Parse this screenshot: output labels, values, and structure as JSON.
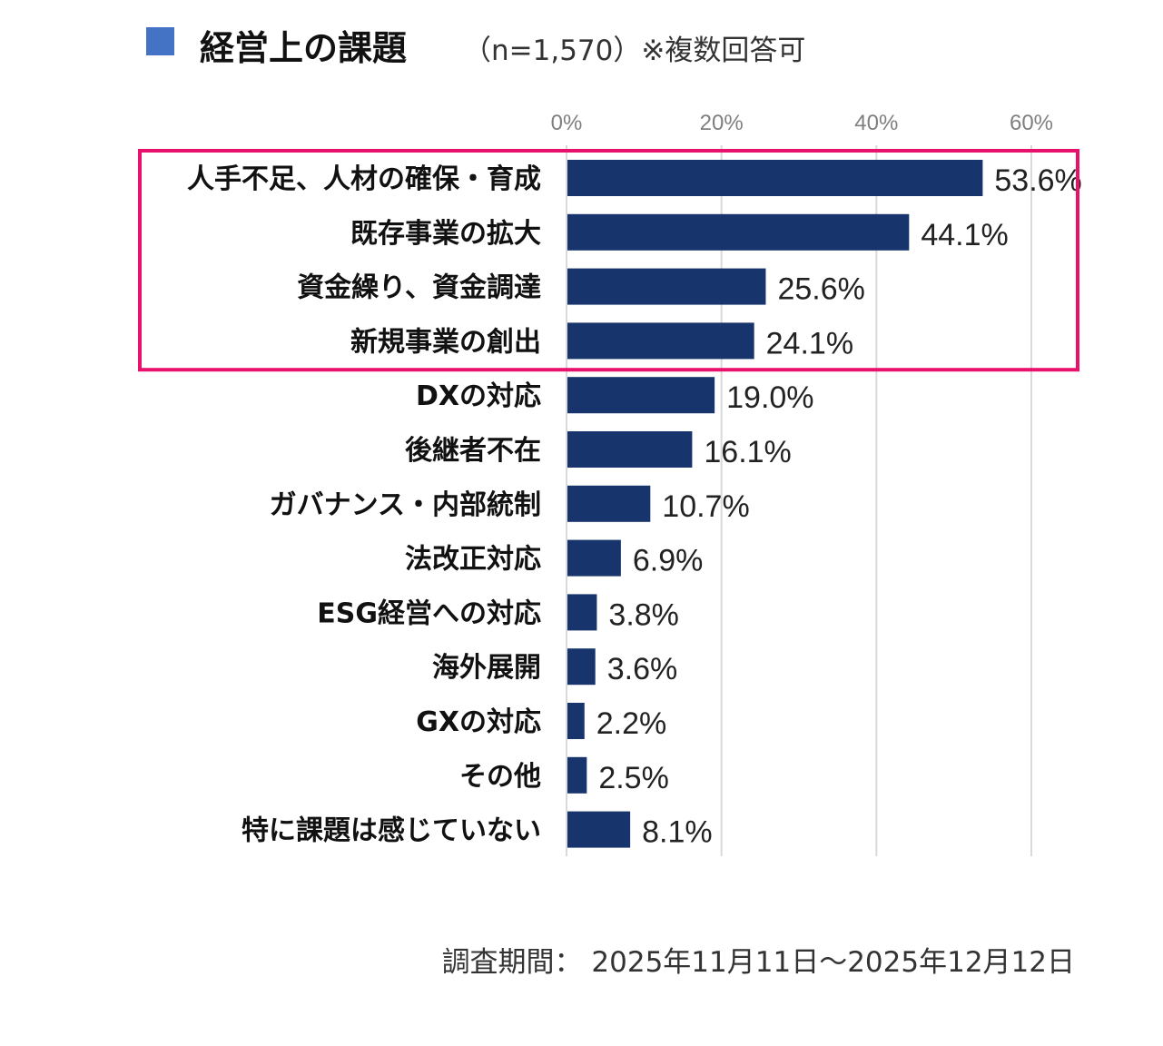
{
  "chart_data": {
    "type": "bar",
    "orientation": "horizontal",
    "title": "経営上の課題",
    "subtitle": "（n=1,570）※複数回答可",
    "footnote": "調査期間： 2025年11月11日～2025年12月12日",
    "categories": [
      "人手不足、人材の確保・育成",
      "既存事業の拡大",
      "資金繰り、資金調達",
      "新規事業の創出",
      "DXの対応",
      "後継者不在",
      "ガバナンス・内部統制",
      "法改正対応",
      "ESG経営への対応",
      "海外展開",
      "GXの対応",
      "その他",
      "特に課題は感じていない"
    ],
    "values": [
      53.6,
      44.1,
      25.6,
      24.1,
      19.0,
      16.1,
      10.7,
      6.9,
      3.8,
      3.6,
      2.2,
      2.5,
      8.1
    ],
    "data_labels": [
      "53.6%",
      "44.1%",
      "25.6%",
      "24.1%",
      "19.0%",
      "16.1%",
      "10.7%",
      "6.9%",
      "3.8%",
      "3.6%",
      "2.2%",
      "2.5%",
      "8.1%"
    ],
    "xticks": [
      "0%",
      "20%",
      "40%",
      "60%"
    ],
    "xlim": [
      0,
      60
    ],
    "axis_position": "top",
    "grid": true,
    "highlighted_categories": [
      "人手不足、人材の確保・育成",
      "既存事業の拡大",
      "資金繰り、資金調達",
      "新規事業の創出"
    ],
    "colors": {
      "bar": "#17346c",
      "title_mark": "#4472c4",
      "highlight": "#e8126c",
      "grid": "#d9d9d9"
    }
  }
}
